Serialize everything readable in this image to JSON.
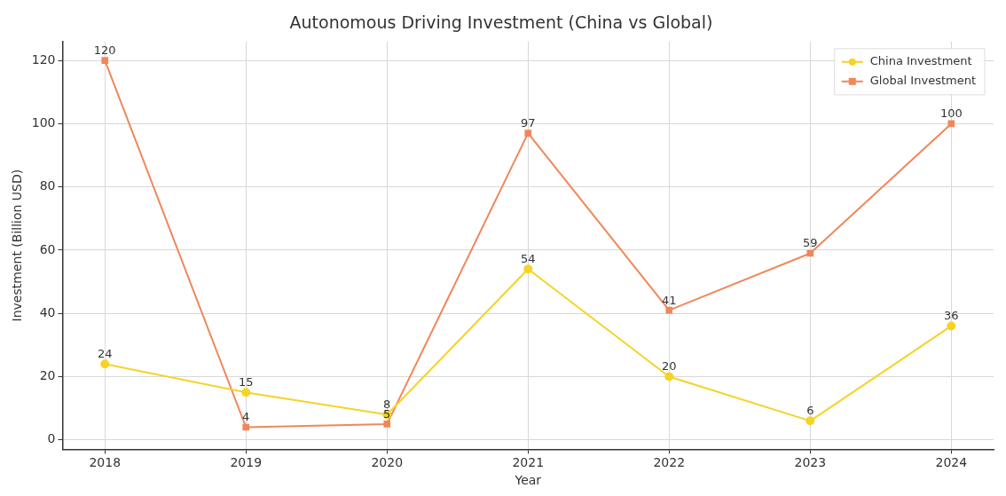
{
  "chart_data": {
    "type": "line",
    "title": "Autonomous Driving Investment (China vs Global)",
    "xlabel": "Year",
    "ylabel": "Investment (Billion USD)",
    "x": [
      2018,
      2019,
      2020,
      2021,
      2022,
      2023,
      2024
    ],
    "series": [
      {
        "name": "China Investment",
        "color": "#f5d327",
        "marker": "circle",
        "values": [
          24,
          15,
          8,
          54,
          20,
          6,
          36
        ]
      },
      {
        "name": "Global Investment",
        "color": "#f0875a",
        "marker": "square",
        "values": [
          120,
          4,
          5,
          97,
          41,
          59,
          100
        ]
      }
    ],
    "xlim": [
      2017.7,
      2024.3
    ],
    "xticks": [
      2018,
      2019,
      2020,
      2021,
      2022,
      2023,
      2024
    ],
    "ylim": [
      -3,
      126
    ],
    "yticks": [
      0,
      20,
      40,
      60,
      80,
      100,
      120
    ],
    "grid": true,
    "legend": "top right",
    "data_labels": true,
    "line_style": "solid"
  }
}
